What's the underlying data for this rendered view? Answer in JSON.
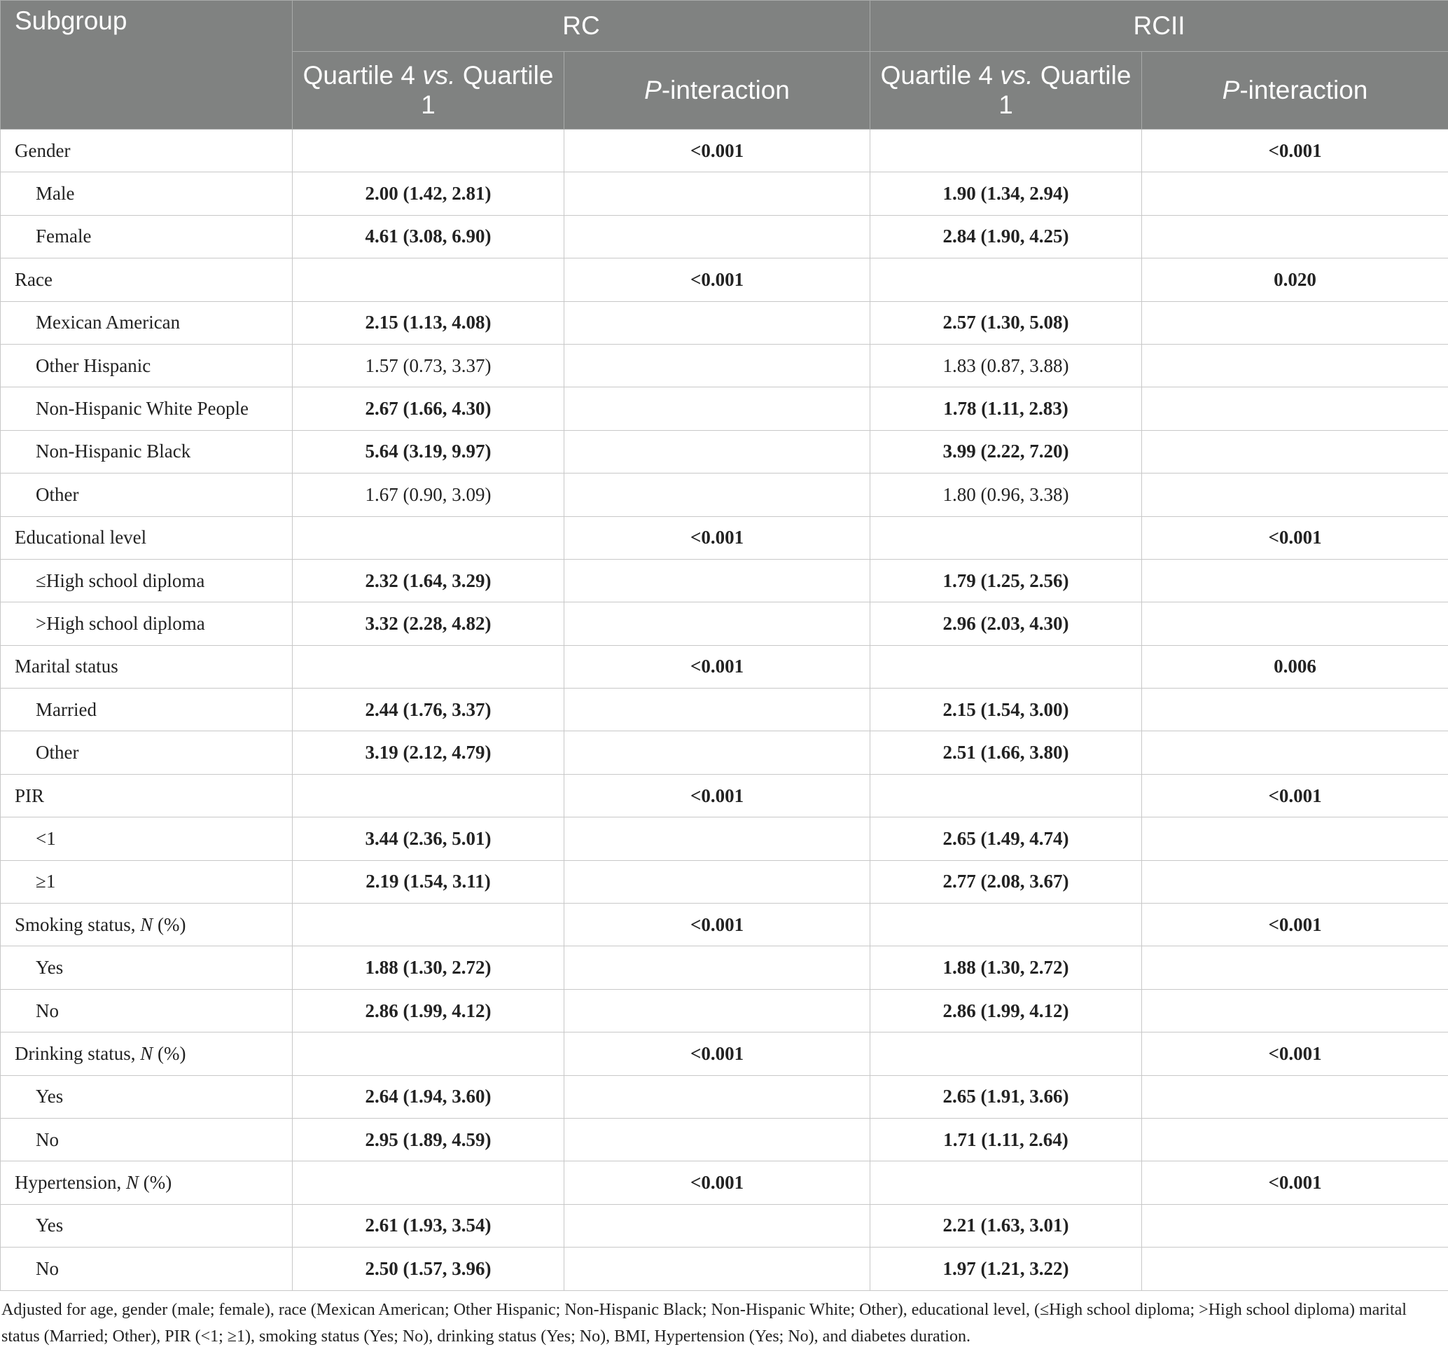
{
  "table": {
    "header": {
      "subgroup": "Subgroup",
      "groups": [
        "RC",
        "RCII"
      ],
      "columns": [
        [
          "Quartile 4",
          "vs.",
          "Quartile 1"
        ],
        [
          "P",
          "-interaction"
        ],
        [
          "Quartile 4",
          "vs.",
          "Quartile 1"
        ],
        [
          "P",
          "-interaction"
        ]
      ]
    },
    "groups": [
      {
        "label": "Gender",
        "p_rc": "<0.001",
        "p_rcii": "<0.001",
        "items": [
          {
            "label": "Male",
            "rc": "2.00 (1.42, 2.81)",
            "rcii": "1.90 (1.34, 2.94)"
          },
          {
            "label": "Female",
            "rc": "4.61 (3.08, 6.90)",
            "rcii": "2.84 (1.90, 4.25)"
          }
        ]
      },
      {
        "label": "Race",
        "p_rc": "<0.001",
        "p_rcii": "0.020",
        "items": [
          {
            "label": "Mexican American",
            "rc": "2.15 (1.13, 4.08)",
            "rcii": "2.57 (1.30, 5.08)"
          },
          {
            "label": "Other Hispanic",
            "rc": "1.57 (0.73, 3.37)",
            "rcii": "1.83 (0.87, 3.88)"
          },
          {
            "label": "Non-Hispanic White People",
            "rc": "2.67 (1.66, 4.30)",
            "rcii": "1.78 (1.11, 2.83)"
          },
          {
            "label": "Non-Hispanic Black",
            "rc": "5.64 (3.19, 9.97)",
            "rcii": "3.99 (2.22, 7.20)"
          },
          {
            "label": "Other",
            "rc": "1.67 (0.90, 3.09)",
            "rcii": "1.80 (0.96, 3.38)"
          }
        ]
      },
      {
        "label": "Educational level",
        "p_rc": "<0.001",
        "p_rcii": "<0.001",
        "items": [
          {
            "label": "≤High school diploma",
            "rc": "2.32 (1.64, 3.29)",
            "rcii": "1.79 (1.25, 2.56)"
          },
          {
            "label": ">High school diploma",
            "rc": "3.32 (2.28, 4.82)",
            "rcii": "2.96 (2.03, 4.30)"
          }
        ]
      },
      {
        "label": "Marital status",
        "p_rc": "<0.001",
        "p_rcii": "0.006",
        "items": [
          {
            "label": "Married",
            "rc": "2.44 (1.76, 3.37)",
            "rcii": "2.15 (1.54, 3.00)"
          },
          {
            "label": "Other",
            "rc": "3.19 (2.12, 4.79)",
            "rcii": "2.51 (1.66, 3.80)"
          }
        ]
      },
      {
        "label": "PIR",
        "p_rc": "<0.001",
        "p_rcii": "<0.001",
        "items": [
          {
            "label": "<1",
            "rc": "3.44 (2.36, 5.01)",
            "rcii": "2.65 (1.49, 4.74)"
          },
          {
            "label": "≥1",
            "rc": "2.19 (1.54, 3.11)",
            "rcii": "2.77 (2.08, 3.67)"
          }
        ]
      },
      {
        "label": [
          "Smoking status, ",
          "N",
          " (%)"
        ],
        "p_rc": "<0.001",
        "p_rcii": "<0.001",
        "items": [
          {
            "label": "Yes",
            "rc": "1.88 (1.30, 2.72)",
            "rcii": "1.88 (1.30, 2.72)"
          },
          {
            "label": "No",
            "rc": "2.86 (1.99, 4.12)",
            "rcii": "2.86 (1.99, 4.12)"
          }
        ]
      },
      {
        "label": [
          "Drinking status, ",
          "N",
          " (%)"
        ],
        "p_rc": "<0.001",
        "p_rcii": "<0.001",
        "items": [
          {
            "label": "Yes",
            "rc": "2.64 (1.94, 3.60)",
            "rcii": "2.65 (1.91, 3.66)"
          },
          {
            "label": "No",
            "rc": "2.95 (1.89, 4.59)",
            "rcii": "1.71 (1.11, 2.64)"
          }
        ]
      },
      {
        "label": [
          "Hypertension, ",
          "N",
          " (%)"
        ],
        "p_rc": "<0.001",
        "p_rcii": "<0.001",
        "items": [
          {
            "label": "Yes",
            "rc": "2.61 (1.93, 3.54)",
            "rcii": "2.21 (1.63, 3.01)"
          },
          {
            "label": "No",
            "rc": "2.50 (1.57, 3.96)",
            "rcii": "1.97 (1.21, 3.22)"
          }
        ]
      }
    ],
    "footnote": "Adjusted for age, gender (male; female), race (Mexican American; Other Hispanic; Non-Hispanic Black; Non-Hispanic White; Other), educational level, (≤High school diploma; >High school diploma) marital status (Married; Other), PIR (<1; ≥1), smoking status (Yes; No), drinking status (Yes; No), BMI, Hypertension (Yes; No), and diabetes duration."
  }
}
